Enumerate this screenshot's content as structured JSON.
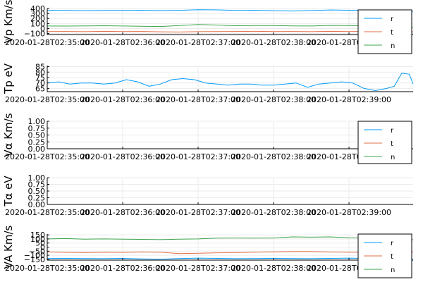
{
  "colors": {
    "r": "#009AFA",
    "t": "#E26F46",
    "n": "#3DA44D",
    "grid": "#EBEBEB",
    "axis": "#000000"
  },
  "chart_data": [
    {
      "type": "line",
      "ylabel": "Vp Km/s",
      "ylim": [
        -120,
        400
      ],
      "yticks": [
        -100,
        0,
        100,
        200,
        300,
        400
      ],
      "xticks": [
        "2020-01-28T02:35:00",
        "2020-01-28T02:36:00",
        "2020-01-28T02:37:00",
        "2020-01-28T02:38:00",
        "2020-01-28T02:39:00"
      ],
      "xrange_minutes": [
        0,
        4.85
      ],
      "legend": "bottom-right",
      "series": [
        {
          "name": "r",
          "x": [
            0,
            0.25,
            0.5,
            0.75,
            1,
            1.25,
            1.5,
            1.75,
            2,
            2.25,
            2.5,
            2.75,
            3,
            3.25,
            3.5,
            3.75,
            4,
            4.25,
            4.5,
            4.75,
            4.85
          ],
          "values": [
            365,
            360,
            355,
            362,
            360,
            365,
            358,
            363,
            375,
            372,
            360,
            365,
            355,
            350,
            358,
            370,
            365,
            360,
            355,
            358,
            340
          ]
        },
        {
          "name": "t",
          "x": [
            0,
            0.25,
            0.5,
            0.75,
            1,
            1.25,
            1.5,
            1.75,
            2,
            2.25,
            2.5,
            2.75,
            3,
            3.25,
            3.5,
            3.75,
            4,
            4.25,
            4.5,
            4.75,
            4.85
          ],
          "values": [
            -60,
            -58,
            -62,
            -55,
            -60,
            -58,
            -65,
            -70,
            -62,
            -60,
            -58,
            -55,
            -60,
            -58,
            -62,
            -55,
            -60,
            -58,
            -62,
            -60,
            -65
          ]
        },
        {
          "name": "n",
          "x": [
            0,
            0.25,
            0.5,
            0.75,
            1,
            1.25,
            1.5,
            1.75,
            2,
            2.25,
            2.5,
            2.75,
            3,
            3.25,
            3.5,
            3.75,
            4,
            4.25,
            4.5,
            4.75,
            4.85
          ],
          "values": [
            50,
            48,
            52,
            55,
            50,
            45,
            40,
            60,
            80,
            70,
            55,
            58,
            60,
            52,
            50,
            62,
            58,
            55,
            50,
            30,
            20
          ]
        }
      ]
    },
    {
      "type": "line",
      "ylabel": "Tp eV",
      "ylim": [
        62,
        86
      ],
      "yticks": [
        65,
        70,
        75,
        80,
        85
      ],
      "xticks": [
        "2020-01-28T02:35:00",
        "2020-01-28T02:36:00",
        "2020-01-28T02:37:00",
        "2020-01-28T02:38:00",
        "2020-01-28T02:39:00"
      ],
      "xrange_minutes": [
        0,
        4.85
      ],
      "legend": "none",
      "series": [
        {
          "name": "",
          "x": [
            0,
            0.15,
            0.3,
            0.45,
            0.6,
            0.75,
            0.9,
            1.05,
            1.2,
            1.35,
            1.5,
            1.65,
            1.8,
            1.95,
            2.1,
            2.25,
            2.4,
            2.55,
            2.7,
            2.85,
            3.0,
            3.15,
            3.3,
            3.45,
            3.6,
            3.75,
            3.9,
            4.05,
            4.2,
            4.35,
            4.5,
            4.6,
            4.7,
            4.8,
            4.85
          ],
          "values": [
            70,
            71,
            69,
            70,
            70,
            69,
            70,
            73,
            71,
            67,
            69,
            73,
            74,
            73,
            70,
            69,
            68,
            69,
            69,
            68,
            68,
            69,
            70,
            66,
            69,
            70,
            71,
            70,
            65,
            63,
            65,
            67,
            79,
            78,
            69
          ]
        }
      ]
    },
    {
      "type": "line",
      "ylabel": "Vα Km/s",
      "ylim": [
        0,
        1
      ],
      "yticks": [
        0.0,
        0.25,
        0.5,
        0.75,
        1.0
      ],
      "ytick_labels": [
        "0.00",
        "0.25",
        "0.50",
        "0.75",
        "1.00"
      ],
      "xticks": [
        "2020-01-28T02:35:00",
        "2020-01-28T02:36:00",
        "2020-01-28T02:37:00",
        "2020-01-28T02:38:00",
        "2020-01-28T02:39:00"
      ],
      "xrange_minutes": [
        0,
        4.85
      ],
      "legend": "bottom-right",
      "series": [
        {
          "name": "r",
          "values": []
        },
        {
          "name": "t",
          "values": []
        },
        {
          "name": "n",
          "values": []
        }
      ]
    },
    {
      "type": "line",
      "ylabel": "Tα eV",
      "ylim": [
        0,
        1
      ],
      "yticks": [
        0.0,
        0.25,
        0.5,
        0.75,
        1.0
      ],
      "ytick_labels": [
        "0.00",
        "0.25",
        "0.50",
        "0.75",
        "1.00"
      ],
      "xticks": [
        "2020-01-28T02:35:00",
        "2020-01-28T02:36:00",
        "2020-01-28T02:37:00",
        "2020-01-28T02:38:00",
        "2020-01-28T02:39:00"
      ],
      "xrange_minutes": [
        0,
        4.85
      ],
      "legend": "none",
      "series": []
    },
    {
      "type": "line",
      "ylabel": "VA Km/s",
      "ylim": [
        -160,
        160
      ],
      "yticks": [
        -150,
        -100,
        -50,
        0,
        50,
        100,
        150
      ],
      "xticks": [
        "2020-01-28T02:35:00",
        "2020-01-28T02:36:00",
        "2020-01-28T02:37:00",
        "2020-01-28T02:38:00",
        "2020-01-28T02:39:00"
      ],
      "xrange_minutes": [
        0,
        4.85
      ],
      "legend": "bottom-right",
      "series": [
        {
          "name": "r",
          "x": [
            0,
            0.25,
            0.5,
            0.75,
            1,
            1.25,
            1.5,
            1.75,
            2,
            2.25,
            2.5,
            2.75,
            3,
            3.25,
            3.5,
            3.75,
            4,
            4.25,
            4.5,
            4.75,
            4.85
          ],
          "values": [
            -140,
            -138,
            -140,
            -142,
            -138,
            -145,
            -148,
            -140,
            -135,
            -138,
            -142,
            -140,
            -138,
            -140,
            -142,
            -138,
            -135,
            -140,
            -142,
            -140,
            -145
          ]
        },
        {
          "name": "t",
          "x": [
            0,
            0.25,
            0.5,
            0.75,
            1,
            1.25,
            1.5,
            1.75,
            2,
            2.25,
            2.5,
            2.75,
            3,
            3.25,
            3.5,
            3.75,
            4,
            4.25,
            4.5,
            4.75,
            4.85
          ],
          "values": [
            -60,
            -65,
            -68,
            -62,
            -65,
            -60,
            -62,
            -80,
            -75,
            -70,
            -68,
            -62,
            -58,
            -55,
            -55,
            -60,
            -62,
            -65,
            -60,
            -65,
            -60
          ]
        },
        {
          "name": "n",
          "x": [
            0,
            0.25,
            0.5,
            0.75,
            1,
            1.25,
            1.5,
            1.75,
            2,
            2.25,
            2.5,
            2.75,
            3,
            3.25,
            3.5,
            3.75,
            4,
            4.25,
            4.5,
            4.75,
            4.85
          ],
          "values": [
            100,
            105,
            98,
            100,
            98,
            95,
            92,
            98,
            100,
            110,
            112,
            110,
            112,
            125,
            122,
            125,
            115,
            110,
            105,
            95,
            90
          ]
        }
      ]
    }
  ]
}
